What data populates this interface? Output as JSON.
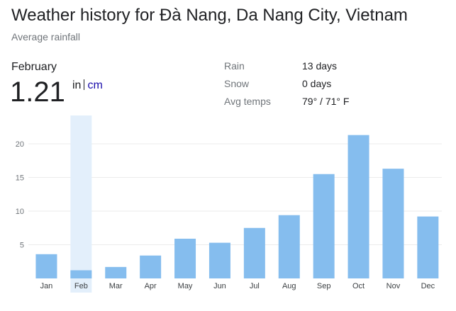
{
  "header": {
    "title": "Weather history for Đà Nang, Da Nang City, Vietnam",
    "subtitle": "Average rainfall"
  },
  "selected": {
    "month": "February",
    "value": "1.21",
    "unit_in": "in",
    "unit_cm": "cm"
  },
  "stats": [
    {
      "label": "Rain",
      "value": "13 days"
    },
    {
      "label": "Snow",
      "value": "0 days"
    },
    {
      "label": "Avg temps",
      "value": "79° / 71° F"
    }
  ],
  "colors": {
    "bar": "#85bdee",
    "highlight": "#e3effb",
    "grid": "#ebebeb"
  },
  "chart_data": {
    "type": "bar",
    "categories": [
      "Jan",
      "Feb",
      "Mar",
      "Apr",
      "May",
      "Jun",
      "Jul",
      "Aug",
      "Sep",
      "Oct",
      "Nov",
      "Dec"
    ],
    "values": [
      3.6,
      1.21,
      1.7,
      3.4,
      5.9,
      5.3,
      7.5,
      9.4,
      15.5,
      21.3,
      16.3,
      9.2
    ],
    "yticks": [
      5,
      10,
      15,
      20
    ],
    "ylim": [
      0,
      24
    ],
    "highlighted_category": "Feb",
    "grid": true,
    "title": "",
    "xlabel": "",
    "ylabel": ""
  }
}
